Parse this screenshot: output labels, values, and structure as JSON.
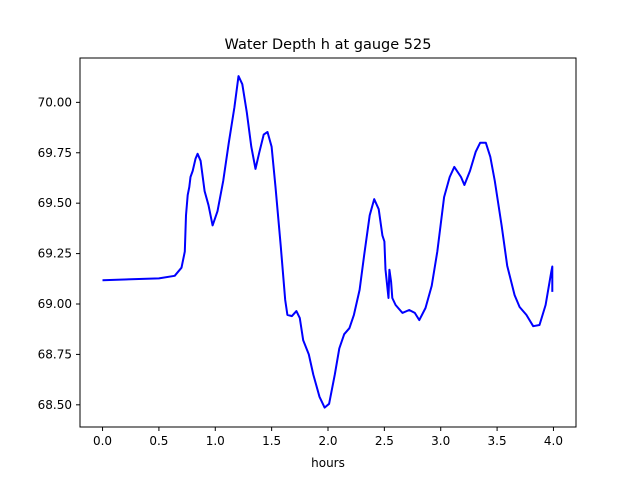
{
  "chart_data": {
    "type": "line",
    "title": "Water Depth h at gauge 525",
    "xlabel": "hours",
    "ylabel": "",
    "xlim": [
      -0.2,
      4.2
    ],
    "ylim": [
      68.39,
      70.22
    ],
    "grid": false,
    "x_ticks": [
      0.0,
      0.5,
      1.0,
      1.5,
      2.0,
      2.5,
      3.0,
      3.5,
      4.0
    ],
    "x_tick_labels": [
      "0.0",
      "0.5",
      "1.0",
      "1.5",
      "2.0",
      "2.5",
      "3.0",
      "3.5",
      "4.0"
    ],
    "y_ticks": [
      68.5,
      68.75,
      69.0,
      69.25,
      69.5,
      69.75,
      70.0
    ],
    "y_tick_labels": [
      "68.50",
      "68.75",
      "69.00",
      "69.25",
      "69.50",
      "69.75",
      "70.00"
    ],
    "series": [
      {
        "name": "h",
        "color": "#0000ff",
        "x": [
          0,
          0.5,
          0.64,
          0.7,
          0.73,
          0.74,
          0.755,
          0.77,
          0.78,
          0.8,
          0.825,
          0.843,
          0.87,
          0.905,
          0.94,
          0.976,
          1.02,
          1.07,
          1.12,
          1.17,
          1.206,
          1.24,
          1.28,
          1.32,
          1.357,
          1.39,
          1.43,
          1.463,
          1.5,
          1.534,
          1.58,
          1.62,
          1.64,
          1.68,
          1.72,
          1.75,
          1.78,
          1.83,
          1.87,
          1.925,
          1.97,
          2.01,
          2.06,
          2.1,
          2.144,
          2.19,
          2.23,
          2.28,
          2.32,
          2.37,
          2.41,
          2.45,
          2.483,
          2.5,
          2.51,
          2.537,
          2.545,
          2.56,
          2.57,
          2.6,
          2.66,
          2.72,
          2.77,
          2.81,
          2.865,
          2.92,
          2.97,
          3.03,
          3.08,
          3.12,
          3.18,
          3.21,
          3.26,
          3.31,
          3.35,
          3.4,
          3.44,
          3.48,
          3.54,
          3.59,
          3.655,
          3.7,
          3.76,
          3.82,
          3.876,
          3.93,
          3.98,
          3.99,
          3.99
        ],
        "y": [
          69.118,
          69.127,
          69.14,
          69.18,
          69.26,
          69.44,
          69.54,
          69.58,
          69.63,
          69.66,
          69.72,
          69.745,
          69.71,
          69.56,
          69.49,
          69.39,
          69.46,
          69.61,
          69.8,
          69.975,
          70.13,
          70.09,
          69.95,
          69.78,
          69.67,
          69.75,
          69.84,
          69.853,
          69.78,
          69.58,
          69.29,
          69.02,
          68.946,
          68.94,
          68.965,
          68.93,
          68.82,
          68.75,
          68.65,
          68.54,
          68.486,
          68.505,
          68.65,
          68.78,
          68.85,
          68.88,
          68.946,
          69.07,
          69.24,
          69.44,
          69.52,
          69.47,
          69.34,
          69.31,
          69.17,
          69.03,
          69.17,
          69.11,
          69.03,
          68.995,
          68.956,
          68.97,
          68.956,
          68.92,
          68.98,
          69.09,
          69.26,
          69.53,
          69.63,
          69.68,
          69.63,
          69.59,
          69.66,
          69.755,
          69.8,
          69.8,
          69.73,
          69.61,
          69.39,
          69.19,
          69.044,
          68.985,
          68.946,
          68.89,
          68.896,
          68.995,
          69.157,
          69.186,
          69.06
        ]
      }
    ]
  }
}
